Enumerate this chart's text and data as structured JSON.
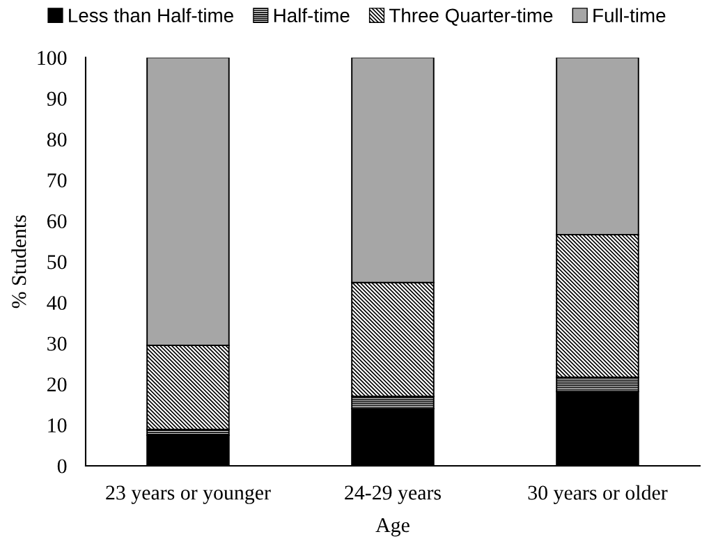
{
  "chart_data": {
    "type": "bar",
    "stacked": true,
    "xlabel": "Age",
    "ylabel": "% Students",
    "categories": [
      "23 years or younger",
      "24-29 years",
      "30 years or older"
    ],
    "series": [
      {
        "name": "Less than Half-time",
        "color": "#000000",
        "values": [
          7.5,
          14.0,
          18.2
        ]
      },
      {
        "name": "Half-time",
        "color": "#000000",
        "values": [
          1.4,
          3.0,
          3.5
        ]
      },
      {
        "name": "Three Quarter-time",
        "color": "#000000",
        "values": [
          20.6,
          27.9,
          34.9
        ]
      },
      {
        "name": "Full-time",
        "color": "#a6a6a6",
        "values": [
          70.5,
          55.1,
          43.4
        ]
      }
    ],
    "ylim": [
      0,
      100
    ],
    "yticks": [
      0,
      10,
      20,
      30,
      40,
      50,
      60,
      70,
      80,
      90,
      100
    ],
    "grid": false,
    "legend": "top"
  }
}
